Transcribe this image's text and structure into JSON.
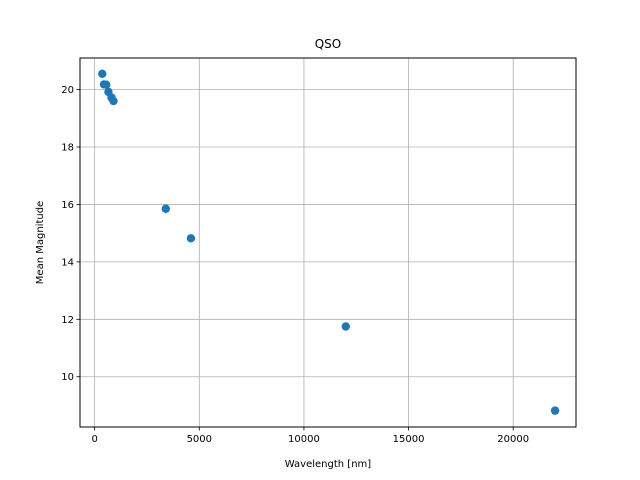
{
  "chart_data": {
    "type": "scatter",
    "title": "QSO",
    "xlabel": "Wavelength [nm]",
    "ylabel": "Mean Magnitude",
    "xlim": [
      -700,
      23000
    ],
    "ylim": [
      8.25,
      21.1
    ],
    "xticks": [
      0,
      5000,
      10000,
      15000,
      20000
    ],
    "yticks": [
      10,
      12,
      14,
      16,
      18,
      20
    ],
    "grid": true,
    "color": "#1f77b4",
    "series": [
      {
        "x": [
          365,
          445,
          551,
          658,
          806,
          900,
          3400,
          4600,
          12000,
          22000
        ],
        "y": [
          20.55,
          20.18,
          20.17,
          19.92,
          19.72,
          19.6,
          15.85,
          14.82,
          11.75,
          8.82
        ]
      }
    ]
  }
}
